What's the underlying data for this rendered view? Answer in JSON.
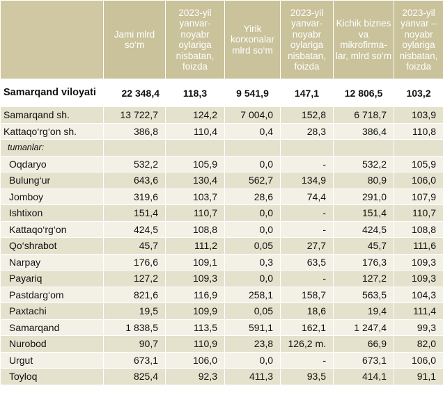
{
  "headers": [
    "",
    "Jami mlrd so‘m",
    "2023-yil yanvar-noyabr oylariga nisbatan, foizda",
    "Yirik korxonalar mlrd so‘m",
    "2023-yil yanvar-noyabr oylariga nisbatan, foizda",
    "Kichik biznes va mikrofirma-lar, mlrd so‘m",
    "2023-yil yanvar – noyabr oylariga nisbatan, foizda"
  ],
  "region": {
    "name": "Samarqand viloyati",
    "values": [
      "22 348,4",
      "118,3",
      "9 541,9",
      "147,1",
      "12 806,5",
      "103,2"
    ]
  },
  "cities": [
    {
      "name": "Samarqand sh.",
      "values": [
        "13 722,7",
        "124,2",
        "7 004,0",
        "152,8",
        "6 718,7",
        "103,9"
      ]
    },
    {
      "name": "Kattaqo‘rg‘on sh.",
      "values": [
        "386,8",
        "110,4",
        "0,4",
        "28,3",
        "386,4",
        "110,8"
      ]
    }
  ],
  "districts_label": "tumanlar:",
  "districts": [
    {
      "name": "Oqdaryo",
      "values": [
        "532,2",
        "105,9",
        "0,0",
        "-",
        "532,2",
        "105,9"
      ]
    },
    {
      "name": "Bulung‘ur",
      "values": [
        "643,6",
        "130,4",
        "562,7",
        "134,9",
        "80,9",
        "106,0"
      ]
    },
    {
      "name": "Jomboy",
      "values": [
        "319,6",
        "103,7",
        "28,6",
        "74,4",
        "291,0",
        "107,9"
      ]
    },
    {
      "name": "Ishtixon",
      "values": [
        "151,4",
        "110,7",
        "0,0",
        "-",
        "151,4",
        "110,7"
      ]
    },
    {
      "name": "Kattaqo‘rg‘on",
      "values": [
        "424,5",
        "108,8",
        "0,0",
        "-",
        "424,5",
        "108,8"
      ]
    },
    {
      "name": "Qo‘shrabot",
      "values": [
        "45,7",
        "111,2",
        "0,05",
        "27,7",
        "45,7",
        "111,6"
      ]
    },
    {
      "name": "Narpay",
      "values": [
        "176,6",
        "109,1",
        "0,3",
        "63,5",
        "176,3",
        "109,3"
      ]
    },
    {
      "name": "Payariq",
      "values": [
        "127,2",
        "109,3",
        "0,0",
        "-",
        "127,2",
        "109,3"
      ]
    },
    {
      "name": "Pastdarg‘om",
      "values": [
        "821,6",
        "116,9",
        "258,1",
        "158,7",
        "563,5",
        "104,3"
      ]
    },
    {
      "name": "Paxtachi",
      "values": [
        "19,5",
        "109,9",
        "0,05",
        "18,6",
        "19,4",
        "111,4"
      ]
    },
    {
      "name": "Samarqand",
      "values": [
        "1 838,5",
        "113,5",
        "591,1",
        "162,1",
        "1 247,4",
        "99,3"
      ]
    },
    {
      "name": "Nurobod",
      "values": [
        "90,7",
        "110,9",
        "23,8",
        "126,2 m.",
        "66,9",
        "82,0"
      ]
    },
    {
      "name": "Urgut",
      "values": [
        "673,1",
        "106,0",
        "0,0",
        "-",
        "673,1",
        "106,0"
      ]
    },
    {
      "name": "Toyloq",
      "values": [
        "825,4",
        "92,3",
        "411,3",
        "93,5",
        "414,1",
        "91,1"
      ]
    }
  ]
}
